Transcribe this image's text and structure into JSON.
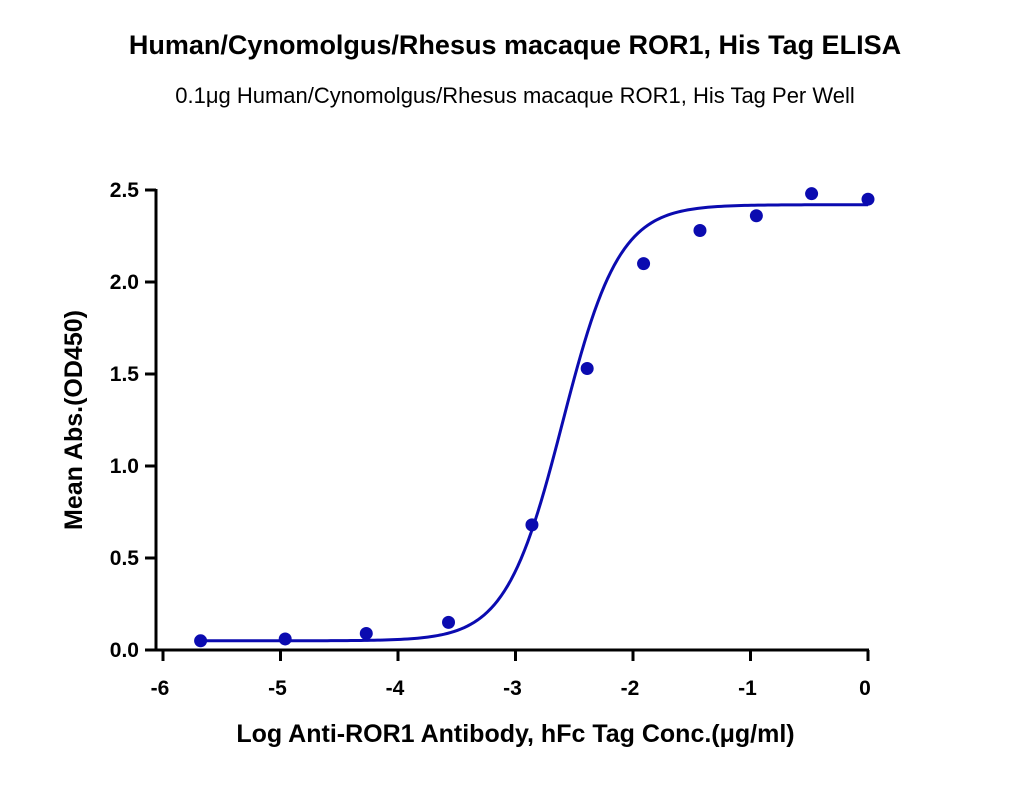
{
  "chart_data": {
    "type": "scatter",
    "title": "Human/Cynomolgus/Rhesus macaque ROR1, His Tag ELISA",
    "subtitle": "0.1μg Human/Cynomolgus/Rhesus macaque ROR1, His Tag Per Well",
    "xlabel": "Log Anti-ROR1 Antibody, hFc Tag Conc.(μg/ml)",
    "ylabel": "Mean Abs.(OD450)",
    "xlim": [
      -6,
      0
    ],
    "ylim": [
      0,
      2.5
    ],
    "x_ticks": [
      "-6",
      "-5",
      "-4",
      "-3",
      "-2",
      "-1",
      "0"
    ],
    "y_ticks": [
      "0.0",
      "0.5",
      "1.0",
      "1.5",
      "2.0",
      "2.5"
    ],
    "grid": false,
    "series": [
      {
        "color": "#0b0bb0",
        "x": [
          -5.68,
          -4.96,
          -4.27,
          -3.57,
          -2.86,
          -2.39,
          -1.91,
          -1.43,
          -0.95,
          -0.48,
          0.0
        ],
        "y": [
          0.05,
          0.06,
          0.09,
          0.15,
          0.68,
          1.53,
          2.1,
          2.28,
          2.36,
          2.48,
          2.45
        ],
        "fit": {
          "model": "4PL",
          "bottom": 0.05,
          "top": 2.42,
          "logEC50": -2.6,
          "hill": 1.8
        }
      }
    ]
  }
}
